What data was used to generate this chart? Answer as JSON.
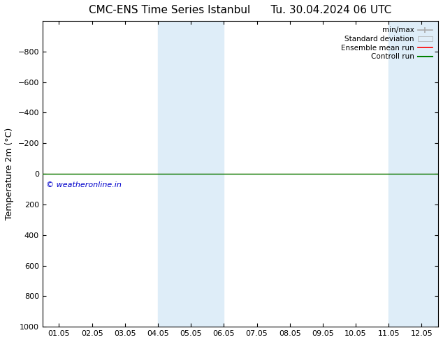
{
  "title_left": "CMC-ENS Time Series Istanbul",
  "title_right": "Tu. 30.04.2024 06 UTC",
  "ylabel": "Temperature 2m (°C)",
  "background_color": "#ffffff",
  "plot_bg_color": "#ffffff",
  "ylim": [
    -1000,
    1000
  ],
  "yticks": [
    -800,
    -600,
    -400,
    -200,
    0,
    200,
    400,
    600,
    800,
    1000
  ],
  "xlim": [
    0,
    12
  ],
  "xtick_labels": [
    "01.05",
    "02.05",
    "03.05",
    "04.05",
    "05.05",
    "06.05",
    "07.05",
    "08.05",
    "09.05",
    "10.05",
    "11.05",
    "12.05"
  ],
  "xtick_positions": [
    0.5,
    1.5,
    2.5,
    3.5,
    4.5,
    5.5,
    6.5,
    7.5,
    8.5,
    9.5,
    10.5,
    11.5
  ],
  "shaded_bands": [
    {
      "x_start": 3.5,
      "x_end": 5.5,
      "color": "#deedf8"
    },
    {
      "x_start": 10.5,
      "x_end": 12.0,
      "color": "#deedf8"
    }
  ],
  "control_run_y": 0,
  "control_run_color": "#008000",
  "ensemble_mean_color": "#ff0000",
  "minmax_color": "#aaaaaa",
  "std_dev_color": "#cccccc",
  "watermark": "© weatheronline.in",
  "watermark_color": "#0000cc",
  "watermark_x_data": 0.1,
  "watermark_y_data": 50,
  "title_fontsize": 11,
  "axis_fontsize": 9,
  "tick_fontsize": 8,
  "legend_fontsize": 7.5
}
